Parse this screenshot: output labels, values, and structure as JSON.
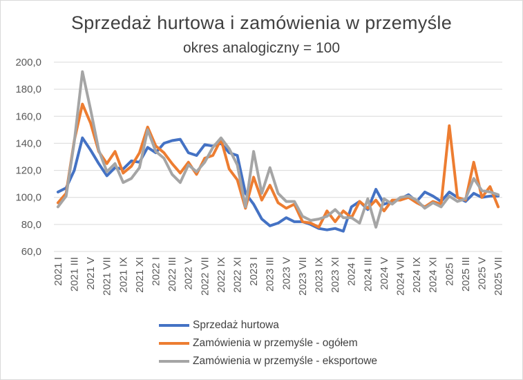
{
  "chart_data": {
    "type": "line",
    "title": "Sprzedaż  hurtowa i zamówienia w przemyśle",
    "subtitle": "okres analogiczny = 100",
    "xlabel": "",
    "ylabel": "",
    "ylim": [
      60,
      200
    ],
    "yticks": [
      "60,0",
      "80,0",
      "100,0",
      "120,0",
      "140,0",
      "160,0",
      "180,0",
      "200,0"
    ],
    "grid": true,
    "legend_position": "bottom",
    "x": [
      "2021 I",
      "2021 II",
      "2021 III",
      "2021 IV",
      "2021 V",
      "2021 VI",
      "2021 VII",
      "2021 VIII",
      "2021 IX",
      "2021 X",
      "2021 XI",
      "2021 XII",
      "2022 I",
      "2022 II",
      "2022 III",
      "2022 IV",
      "2022 V",
      "2022 VI",
      "2022 VII",
      "2022 VIII",
      "2022 IX",
      "2022 X",
      "2022 XI",
      "2022 XII",
      "2023 I",
      "2023 II",
      "2023 III",
      "2023 IV",
      "2023 V",
      "2023 VI",
      "2023 VII",
      "2023 VIII",
      "2023 IX",
      "2023 X",
      "2023 XI",
      "2023 XII",
      "2024 I",
      "2024 II",
      "2024 III",
      "2024 IV",
      "2024 V",
      "2024 VI",
      "2024 VII",
      "2024 VIII",
      "2024 IX",
      "2024 X",
      "2024 XI",
      "2024 XII",
      "2025 I",
      "2025 II",
      "2025 III",
      "2025 IV",
      "2025 V",
      "2025 VI",
      "2025 VII"
    ],
    "xtick_labels": [
      "2021 I",
      "2021 III",
      "2021 V",
      "2021 VII",
      "2021 IX",
      "2021 XI",
      "2022 I",
      "2022 III",
      "2022 V",
      "2022 VII",
      "2022 IX",
      "2022 XI",
      "2023 I",
      "2023 III",
      "2023 V",
      "2023 VII",
      "2023 IX",
      "2023 XI",
      "2024 I",
      "2024 III",
      "2024 V",
      "2024 VII",
      "2024 IX",
      "2024 XI",
      "2025 I",
      "2025 III",
      "2025 V",
      "2025 VII"
    ],
    "series": [
      {
        "name": "Sprzedaż hurtowa",
        "color": "#4472c4",
        "values": [
          104,
          107,
          120,
          144,
          135,
          125,
          116,
          122,
          121,
          127,
          126,
          137,
          133,
          140,
          142,
          143,
          133,
          131,
          139,
          138,
          140,
          133,
          131,
          103,
          95,
          84,
          79,
          81,
          85,
          82,
          82,
          80,
          77,
          76,
          77,
          75,
          93,
          97,
          91,
          106,
          95,
          97,
          99,
          102,
          97,
          104,
          101,
          97,
          104,
          100,
          97,
          103,
          100,
          101,
          101
        ]
      },
      {
        "name": "Zamówienia w przemyśle - ogółem",
        "color": "#ed7d31",
        "values": [
          96,
          103,
          142,
          169,
          155,
          134,
          125,
          134,
          118,
          123,
          133,
          152,
          138,
          133,
          125,
          118,
          126,
          117,
          129,
          131,
          143,
          121,
          113,
          92,
          115,
          98,
          109,
          96,
          92,
          95,
          82,
          81,
          78,
          90,
          82,
          90,
          85,
          97,
          92,
          98,
          90,
          98,
          98,
          100,
          96,
          93,
          97,
          95,
          153,
          100,
          98,
          126,
          100,
          108,
          93
        ]
      },
      {
        "name": "Zamówienia w przemyśle - eksportowe",
        "color": "#a5a5a5",
        "values": [
          93,
          101,
          141,
          193,
          165,
          135,
          119,
          125,
          111,
          114,
          122,
          150,
          134,
          129,
          117,
          111,
          124,
          119,
          126,
          137,
          144,
          136,
          124,
          93,
          134,
          103,
          122,
          103,
          97,
          97,
          86,
          83,
          84,
          86,
          91,
          85,
          85,
          81,
          99,
          78,
          99,
          95,
          100,
          101,
          98,
          92,
          96,
          93,
          101,
          97,
          99,
          114,
          105,
          104,
          102
        ]
      }
    ]
  }
}
